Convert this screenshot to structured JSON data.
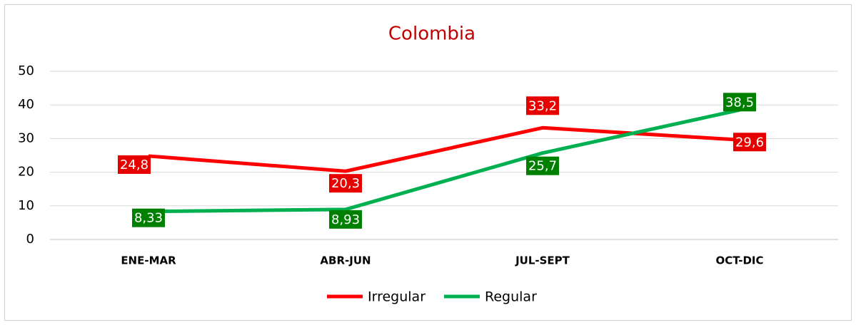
{
  "chart_data": {
    "type": "line",
    "title": "Colombia",
    "categories": [
      "ENE-MAR",
      "ABR-JUN",
      "JUL-SEPT",
      "OCT-DIC"
    ],
    "series": [
      {
        "name": "Irregular",
        "color": "#ff0000",
        "label_color": "#e60000",
        "values": [
          24.8,
          20.3,
          33.2,
          29.6
        ],
        "value_labels": [
          "24,8",
          "20,3",
          "33,2",
          "29,6"
        ]
      },
      {
        "name": "Regular",
        "color": "#00b050",
        "label_color": "#008000",
        "values": [
          8.33,
          8.93,
          25.7,
          38.5
        ],
        "value_labels": [
          "8,33",
          "8,93",
          "25,7",
          "38,5"
        ]
      }
    ],
    "ylim": [
      0,
      50
    ],
    "yticks": [
      0,
      10,
      20,
      30,
      40,
      50
    ],
    "grid": true,
    "legend": "bottom"
  }
}
